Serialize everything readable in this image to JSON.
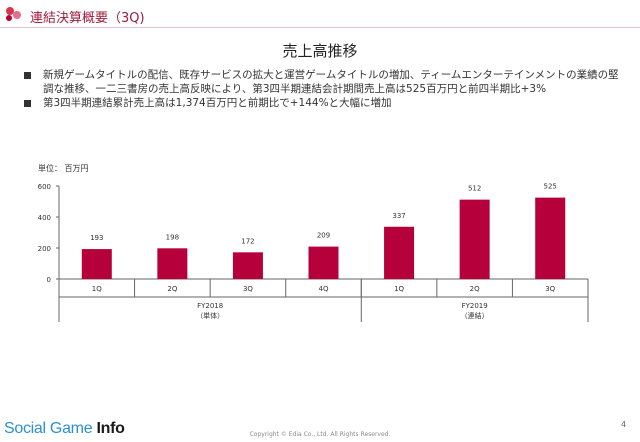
{
  "header": {
    "title": "連結決算概要（3Q)"
  },
  "bullets": [
    "新規ゲームタイトルの配信、既存サービスの拡大と運営ゲームタイトルの増加、ティームエンターテインメントの業績の堅調な推移、一二三書房の売上高反映により、第3四半期連結会計期間売上高は525百万円と前四半期比+3%",
    "第3四半期連結累計売上高は1,374百万円と前期比で+144%と大幅に増加"
  ],
  "chart_data": {
    "type": "bar",
    "title": "売上高推移",
    "unit_label": "単位： 百万円",
    "categories": [
      "1Q",
      "2Q",
      "3Q",
      "4Q",
      "1Q",
      "2Q",
      "3Q"
    ],
    "values": [
      193,
      198,
      172,
      209,
      337,
      512,
      525
    ],
    "groups": [
      {
        "label": "FY2018",
        "sublabel": "（単体）",
        "count": 4
      },
      {
        "label": "FY2019",
        "sublabel": "（連結）",
        "count": 3
      }
    ],
    "yticks": [
      0,
      200,
      400,
      600
    ],
    "ylim": [
      0,
      600
    ],
    "grid": false,
    "bar_color": "#b5003b"
  },
  "footer": {
    "watermark_a": "Social Game ",
    "watermark_b": "Info",
    "copyright": "Copyright © Edia Co., Ltd. All Rights Reserved.",
    "page": "4"
  }
}
